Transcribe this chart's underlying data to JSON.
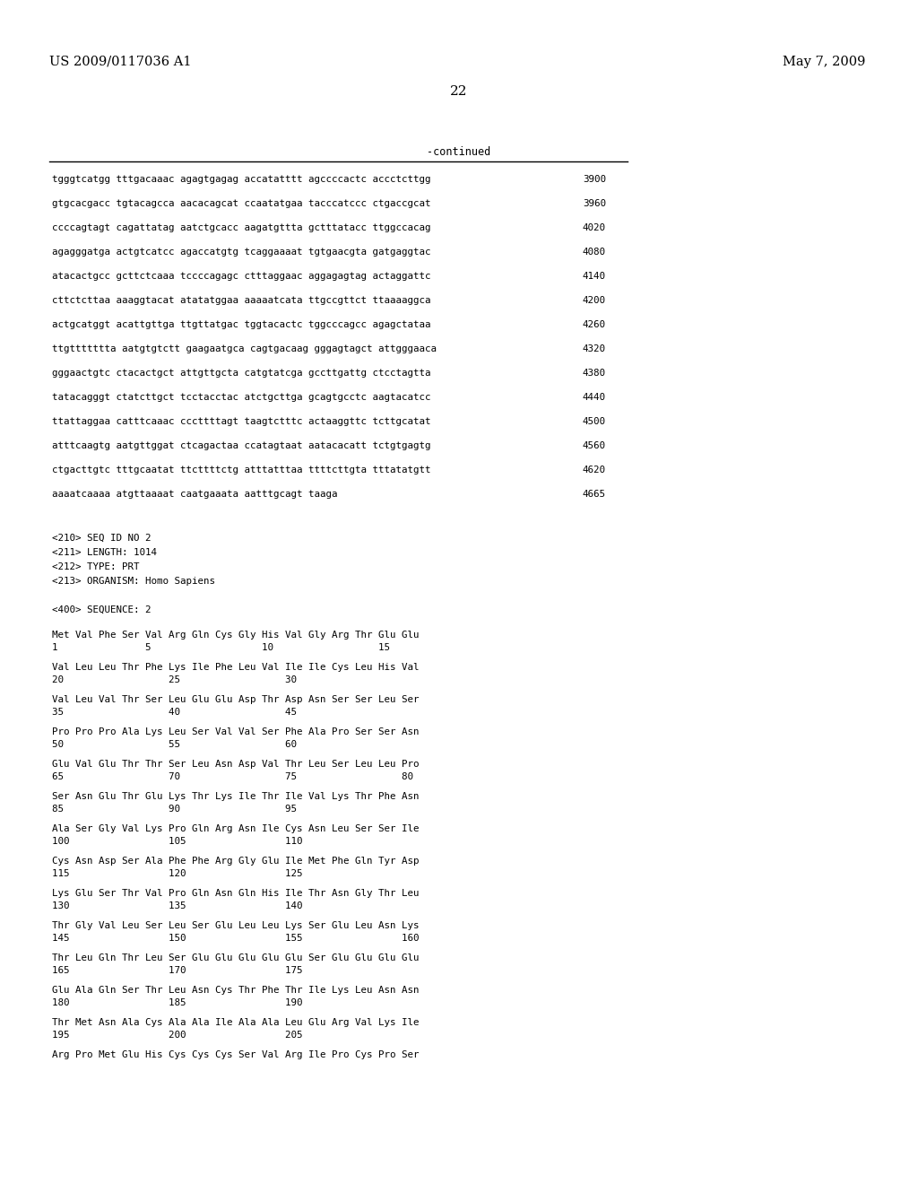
{
  "header_left": "US 2009/0117036 A1",
  "header_right": "May 7, 2009",
  "page_number": "22",
  "continued_label": "-continued",
  "background_color": "#ffffff",
  "text_color": "#000000",
  "sequence_lines": [
    [
      "tgggtcatgg tttgacaaac agagtgagag accatatttt agccccactc accctcttgg",
      "3900"
    ],
    [
      "gtgcacgacc tgtacagcca aacacagcat ccaatatgaa tacccatccc ctgaccgcat",
      "3960"
    ],
    [
      "ccccagtagt cagattatag aatctgcacc aagatgttta gctttatacc ttggccacag",
      "4020"
    ],
    [
      "agagggatga actgtcatcc agaccatgtg tcaggaaaat tgtgaacgta gatgaggtac",
      "4080"
    ],
    [
      "atacactgcc gcttctcaaa tccccagagc ctttaggaac aggagagtag actaggattc",
      "4140"
    ],
    [
      "cttctcttaa aaaggtacat atatatggaa aaaaatcata ttgccgttct ttaaaaggca",
      "4200"
    ],
    [
      "actgcatggt acattgttga ttgttatgac tggtacactc tggcccagcc agagctataa",
      "4260"
    ],
    [
      "ttgttttttta aatgtgtctt gaagaatgca cagtgacaag gggagtagct attgggaaca",
      "4320"
    ],
    [
      "gggaactgtc ctacactgct attgttgcta catgtatcga gccttgattg ctcctagtta",
      "4380"
    ],
    [
      "tatacagggt ctatcttgct tcctacctac atctgcttga gcagtgcctc aagtacatcc",
      "4440"
    ],
    [
      "ttattaggaa catttcaaac cccttttagt taagtctttc actaaggttc tcttgcatat",
      "4500"
    ],
    [
      "atttcaagtg aatgttggat ctcagactaa ccatagtaat aatacacatt tctgtgagtg",
      "4560"
    ],
    [
      "ctgacttgtc tttgcaatat ttcttttctg atttatttaa ttttcttgta tttatatgtt",
      "4620"
    ],
    [
      "aaaatcaaaa atgttaaaat caatgaaata aatttgcagt taaga",
      "4665"
    ]
  ],
  "metadata_lines": [
    "<210> SEQ ID NO 2",
    "<211> LENGTH: 1014",
    "<212> TYPE: PRT",
    "<213> ORGANISM: Homo Sapiens"
  ],
  "sequence_label": "<400> SEQUENCE: 2",
  "protein_blocks": [
    {
      "amino": "Met Val Phe Ser Val Arg Gln Cys Gly His Val Gly Arg Thr Glu Glu",
      "numbers": "1               5                   10                  15"
    },
    {
      "amino": "Val Leu Leu Thr Phe Lys Ile Phe Leu Val Ile Ile Cys Leu His Val",
      "numbers": "20                  25                  30"
    },
    {
      "amino": "Val Leu Val Thr Ser Leu Glu Glu Asp Thr Asp Asn Ser Ser Leu Ser",
      "numbers": "35                  40                  45"
    },
    {
      "amino": "Pro Pro Pro Ala Lys Leu Ser Val Val Ser Phe Ala Pro Ser Ser Asn",
      "numbers": "50                  55                  60"
    },
    {
      "amino": "Glu Val Glu Thr Thr Ser Leu Asn Asp Val Thr Leu Ser Leu Leu Pro",
      "numbers": "65                  70                  75                  80"
    },
    {
      "amino": "Ser Asn Glu Thr Glu Lys Thr Lys Ile Thr Ile Val Lys Thr Phe Asn",
      "numbers": "85                  90                  95"
    },
    {
      "amino": "Ala Ser Gly Val Lys Pro Gln Arg Asn Ile Cys Asn Leu Ser Ser Ile",
      "numbers": "100                 105                 110"
    },
    {
      "amino": "Cys Asn Asp Ser Ala Phe Phe Arg Gly Glu Ile Met Phe Gln Tyr Asp",
      "numbers": "115                 120                 125"
    },
    {
      "amino": "Lys Glu Ser Thr Val Pro Gln Asn Gln His Ile Thr Asn Gly Thr Leu",
      "numbers": "130                 135                 140"
    },
    {
      "amino": "Thr Gly Val Leu Ser Leu Ser Glu Leu Leu Lys Ser Glu Leu Asn Lys",
      "numbers": "145                 150                 155                 160"
    },
    {
      "amino": "Thr Leu Gln Thr Leu Ser Glu Glu Glu Glu Glu Ser Glu Glu Glu Glu",
      "numbers": "165                 170                 175"
    },
    {
      "amino": "Glu Ala Gln Ser Thr Leu Asn Cys Thr Phe Thr Ile Lys Leu Asn Asn",
      "numbers": "180                 185                 190"
    },
    {
      "amino": "Thr Met Asn Ala Cys Ala Ala Ile Ala Ala Leu Glu Arg Val Lys Ile",
      "numbers": "195                 200                 205"
    },
    {
      "amino": "Arg Pro Met Glu His Cys Cys Cys Ser Val Arg Ile Pro Cys Pro Ser",
      "numbers": ""
    }
  ]
}
